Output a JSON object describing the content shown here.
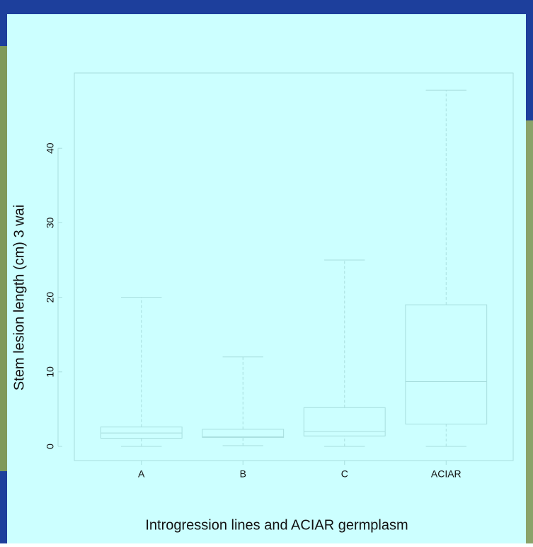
{
  "chart_data": {
    "type": "box",
    "x_label": "Introgression lines and ACIAR germplasm",
    "y_label": "Stem lesion length (cm) 3 wai",
    "categories": [
      "A",
      "B",
      "C",
      "ACIAR"
    ],
    "min": [
      0,
      0.1,
      0,
      0
    ],
    "q1": [
      1.1,
      1.2,
      1.4,
      3
    ],
    "median": [
      1.8,
      1.3,
      2,
      8.7
    ],
    "q3": [
      2.6,
      2.3,
      5.2,
      19
    ],
    "max": [
      20,
      12,
      25,
      47.8
    ],
    "color": "#a8dede",
    "ylim": [
      -1.9,
      50.1
    ],
    "yticks": [
      0,
      10,
      20,
      30,
      40
    ]
  }
}
